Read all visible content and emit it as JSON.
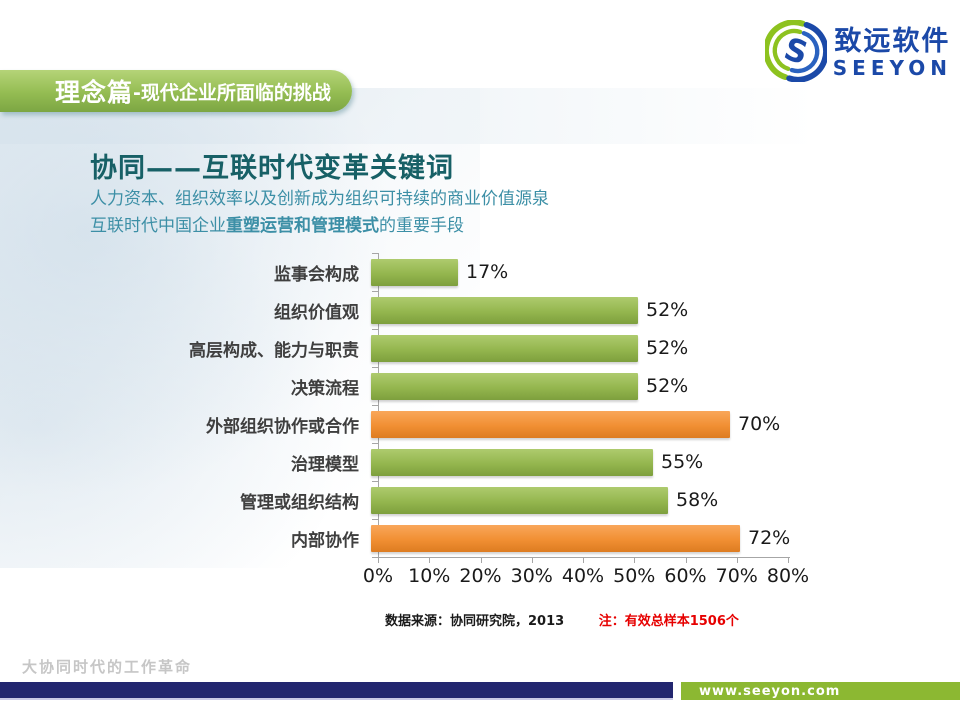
{
  "logo": {
    "brand_cn": "致远软件",
    "brand_en": "SEEYON"
  },
  "banner": {
    "section": "理念篇",
    "subtitle": "-现代企业所面临的挑战"
  },
  "heading": {
    "title": "协同——互联时代变革关键词",
    "line1": "人力资本、组织效率以及创新成为组织可持续的商业价值源泉",
    "line2_prefix": "互联时代中国企业",
    "line2_bold": "重塑运营和管理模式",
    "line2_suffix": "的重要手段"
  },
  "chart_data": {
    "type": "bar",
    "orientation": "horizontal",
    "title": "",
    "xlabel": "",
    "ylabel": "",
    "xlim": [
      0,
      80
    ],
    "grid": false,
    "legend": false,
    "categories": [
      "监事会构成",
      "组织价值观",
      "高层构成、能力与职责",
      "决策流程",
      "外部组织协作或合作",
      "治理模型",
      "管理或组织结构",
      "内部协作"
    ],
    "values": [
      17,
      52,
      52,
      52,
      70,
      55,
      58,
      72
    ],
    "value_labels": [
      "17%",
      "52%",
      "52%",
      "52%",
      "70%",
      "55%",
      "58%",
      "72%"
    ],
    "bar_colors": [
      "green",
      "green",
      "green",
      "green",
      "orange",
      "green",
      "green",
      "orange"
    ],
    "colors": {
      "green": "#94b64e",
      "orange": "#f18f33"
    },
    "x_ticks": [
      "0%",
      "10%",
      "20%",
      "30%",
      "40%",
      "50%",
      "60%",
      "70%",
      "80%"
    ]
  },
  "source_note": {
    "source": "数据来源：协同研究院，2013",
    "note": "注：有效总样本1506个",
    "note_color": "#e60000"
  },
  "footer": {
    "watermark": "大协同时代的工作革命",
    "url": "www.seeyon.com",
    "navy_color": "#22266f",
    "green_color": "#8cb832"
  }
}
